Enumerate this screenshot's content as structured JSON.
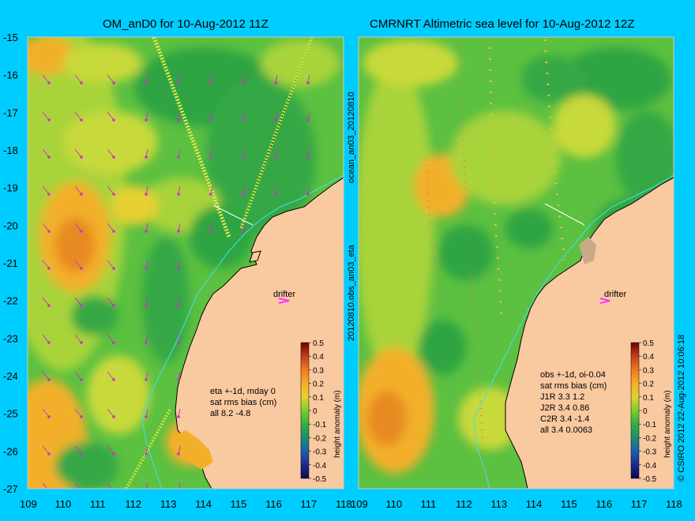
{
  "left_panel": {
    "title": "OM_anD0 for 10-Aug-2012 11Z",
    "stats": [
      "eta +-1d, mday 0",
      "sat rms bias (cm)",
      "all 8.2 -4.8"
    ],
    "drifter_label": "drifter"
  },
  "right_panel": {
    "title": "CMRNRT Altimetric sea level  for 10-Aug-2012 12Z",
    "stats": [
      "obs +-1d, oi-0.04",
      "sat rms bias (cm)",
      "J1R   3.3 1.2",
      "J2R   3.4 0.86",
      "C2R   3.4 -1.4",
      "all 3.4 0.0063"
    ],
    "drifter_label": "drifter"
  },
  "middle_label_top": "ocean_an03_20120810",
  "middle_label_bottom": "20120810.obs_an03_eta",
  "right_edge_label": "© CSIRO 2012   22-Aug-2012 10:06:18",
  "colorbar": {
    "label": "height anomaly (m)",
    "ticks": [
      "0.5",
      "0.4",
      "0.3",
      "0.2",
      "0.1",
      "0",
      "-0.1",
      "-0.2",
      "-0.3",
      "-0.4",
      "-0.5"
    ],
    "colors": [
      "#6b0000",
      "#c0401a",
      "#f07a1e",
      "#f5ae28",
      "#e6d030",
      "#7ad028",
      "#32b040",
      "#1a9070",
      "#1a5fb0",
      "#1a2a90",
      "#0a0a50"
    ]
  },
  "axes": {
    "y_ticks": [
      "-15",
      "-16",
      "-17",
      "-18",
      "-19",
      "-20",
      "-21",
      "-22",
      "-23",
      "-24",
      "-25",
      "-26",
      "-27"
    ],
    "x_ticks": [
      "109",
      "110",
      "111",
      "112",
      "113",
      "114",
      "115",
      "116",
      "117",
      "118"
    ]
  },
  "colors": {
    "background": "#00cdff",
    "land": "#f9c9a0",
    "sea_green": "#38b448",
    "sea_yellow": "#c8d93a",
    "sea_orange": "#f2b02a",
    "vectors": "#cc33cc",
    "coast_contour": "#40e0f0"
  }
}
